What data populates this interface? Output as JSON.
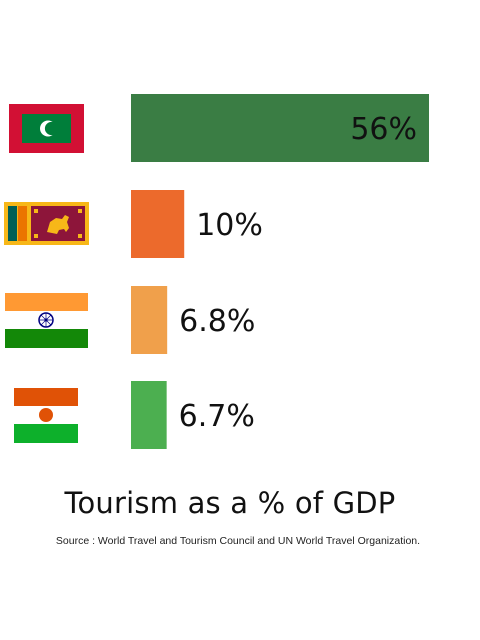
{
  "chart_data": {
    "type": "bar",
    "orientation": "horizontal",
    "categories": [
      "Maldives",
      "Sri Lanka",
      "India",
      "Niger"
    ],
    "values": [
      56,
      10,
      6.8,
      6.7
    ],
    "value_labels": [
      "56%",
      "10%",
      "6.8%",
      "6.7%"
    ],
    "bar_colors": [
      "#3a7d44",
      "#ec6a2c",
      "#f0a04b",
      "#4caf50"
    ],
    "category_icons": [
      "maldives-flag",
      "sri-lanka-flag",
      "india-flag",
      "niger-flag"
    ],
    "title": "Tourism as a % of GDP",
    "xlabel": "",
    "ylabel": "",
    "xlim": [
      0,
      56
    ],
    "grid": false,
    "legend": "none"
  },
  "source": "Source : World Travel and Tourism Council and UN World Travel Organization."
}
